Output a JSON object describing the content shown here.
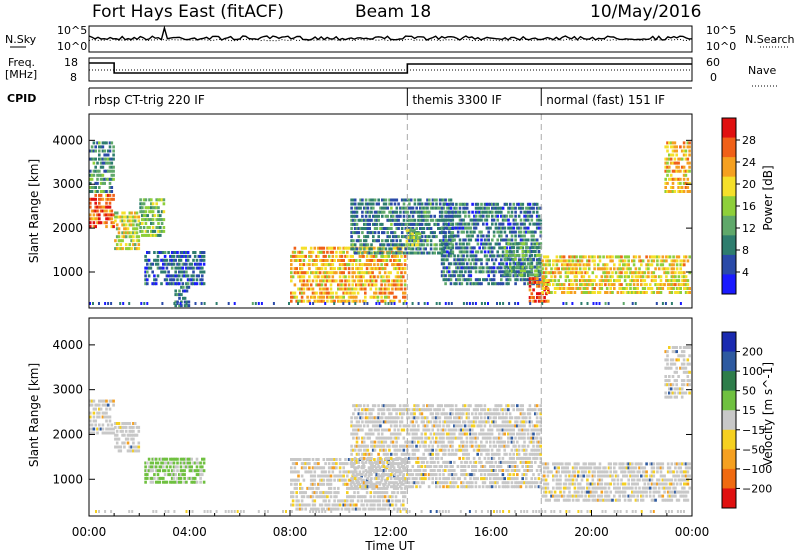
{
  "header": {
    "station": "Fort Hays East (fitACF)",
    "beam": "Beam 18",
    "date": "10/May/2016"
  },
  "top_panels": {
    "nsky_label": "N.Sky",
    "nsearch_label": "N.Search",
    "nsky_ticks": [
      "10^5",
      "10^0"
    ],
    "nsearch_ticks": [
      "10^5",
      "10^0"
    ],
    "freq_label": "Freq.",
    "freq_unit": "[MHz]",
    "freq_ticks": [
      "18",
      "8"
    ],
    "nave_label": "Nave",
    "nave_ticks": [
      "60",
      "0"
    ],
    "cpid_label": "CPID",
    "cpid_segments": [
      {
        "label": "rbsp CT-trig 220 IF",
        "start": 0
      },
      {
        "label": "themis 3300 IF",
        "start": 12.67
      },
      {
        "label": "normal (fast) 151 IF",
        "start": 18.0
      }
    ]
  },
  "chart_data": [
    {
      "type": "heatmap",
      "name": "power",
      "ylabel": "Slant Range [km]",
      "ylim": [
        180,
        4600
      ],
      "yticks": [
        1000,
        2000,
        3000,
        4000
      ],
      "xlim": [
        0,
        24
      ],
      "colorbar_label": "Power [dB]",
      "colorbar_ticks": [
        "4",
        "8",
        "12",
        "16",
        "20",
        "24",
        "28"
      ],
      "colorbar_range": [
        0,
        32
      ],
      "colors": [
        "#1a1aff",
        "#2a4aa8",
        "#2e7d6e",
        "#5fa86a",
        "#8ecf3a",
        "#f5e02a",
        "#f5a020",
        "#f06018",
        "#e01010"
      ],
      "features": [
        {
          "x0": 0.0,
          "x1": 1.0,
          "y0": 2000,
          "y1": 2800,
          "level": 26
        },
        {
          "x0": 0.0,
          "x1": 1.0,
          "y0": 2800,
          "y1": 4000,
          "level": 10
        },
        {
          "x0": 1.0,
          "x1": 2.0,
          "y0": 1500,
          "y1": 2400,
          "level": 18
        },
        {
          "x0": 2.0,
          "x1": 3.0,
          "y0": 1800,
          "y1": 2700,
          "level": 14
        },
        {
          "x0": 2.2,
          "x1": 4.6,
          "y0": 700,
          "y1": 1500,
          "level": 6
        },
        {
          "x0": 3.4,
          "x1": 4.0,
          "y0": 200,
          "y1": 700,
          "level": 8
        },
        {
          "x0": 8.0,
          "x1": 12.6,
          "y0": 300,
          "y1": 1600,
          "level": 22
        },
        {
          "x0": 10.4,
          "x1": 14.5,
          "y0": 1400,
          "y1": 2700,
          "level": 9
        },
        {
          "x0": 12.6,
          "x1": 13.2,
          "y0": 1500,
          "y1": 2000,
          "level": 16
        },
        {
          "x0": 14.0,
          "x1": 18.0,
          "y0": 700,
          "y1": 2600,
          "level": 8
        },
        {
          "x0": 16.5,
          "x1": 18.0,
          "y0": 900,
          "y1": 1700,
          "level": 12
        },
        {
          "x0": 17.5,
          "x1": 18.3,
          "y0": 300,
          "y1": 900,
          "level": 27
        },
        {
          "x0": 18.0,
          "x1": 24.0,
          "y0": 500,
          "y1": 1400,
          "level": 20
        },
        {
          "x0": 22.9,
          "x1": 24.0,
          "y0": 2800,
          "y1": 4000,
          "level": 21
        }
      ]
    },
    {
      "type": "heatmap",
      "name": "velocity",
      "ylabel": "Slant Range [km]",
      "ylim": [
        180,
        4600
      ],
      "yticks": [
        1000,
        2000,
        3000,
        4000
      ],
      "xlim": [
        0,
        24
      ],
      "xticks": [
        "00:00",
        "04:00",
        "08:00",
        "12:00",
        "16:00",
        "20:00",
        "00:00"
      ],
      "xlabel": "Time UT",
      "colorbar_label": "Velocity [m s^-1]",
      "colorbar_ticks": [
        "200",
        "100",
        "50",
        "15",
        "−15",
        "−50",
        "−100",
        "−200"
      ],
      "colors": [
        "#1a2ab0",
        "#2e5aa0",
        "#2e7d4a",
        "#6fc040",
        "#c8c8c8",
        "#f5d020",
        "#f5a020",
        "#f06a10",
        "#e01010"
      ],
      "features": [
        {
          "x0": 0.0,
          "x1": 1.0,
          "y0": 2000,
          "y1": 2800,
          "class": "neutral"
        },
        {
          "x0": 1.0,
          "x1": 2.0,
          "y0": 1600,
          "y1": 2300,
          "class": "neutral"
        },
        {
          "x0": 2.2,
          "x1": 4.6,
          "y0": 900,
          "y1": 1500,
          "class": "positive"
        },
        {
          "x0": 8.0,
          "x1": 12.6,
          "y0": 300,
          "y1": 1500,
          "class": "neutral"
        },
        {
          "x0": 10.4,
          "x1": 18.0,
          "y0": 800,
          "y1": 2700,
          "class": "neutral"
        },
        {
          "x0": 18.0,
          "x1": 24.0,
          "y0": 500,
          "y1": 1400,
          "class": "neutral"
        },
        {
          "x0": 22.9,
          "x1": 24.0,
          "y0": 2800,
          "y1": 4000,
          "class": "neutral"
        }
      ]
    }
  ]
}
